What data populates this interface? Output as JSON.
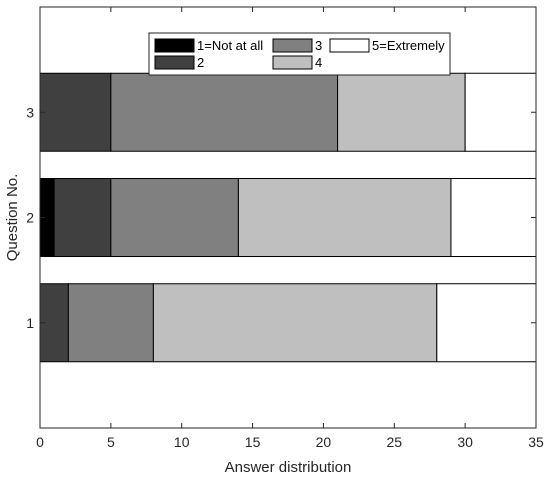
{
  "chart_data": {
    "type": "bar",
    "orientation": "horizontal",
    "stacked": true,
    "categories": [
      "1",
      "2",
      "3"
    ],
    "series": [
      {
        "name": "1=Not at all",
        "values": [
          0,
          1,
          0
        ],
        "color": "#000000"
      },
      {
        "name": "2",
        "values": [
          2,
          4,
          5
        ],
        "color": "#404040"
      },
      {
        "name": "3",
        "values": [
          6,
          9,
          16
        ],
        "color": "#808080"
      },
      {
        "name": "4",
        "values": [
          20,
          15,
          9
        ],
        "color": "#bfbfbf"
      },
      {
        "name": "5=Extremely",
        "values": [
          7,
          6,
          5
        ],
        "color": "#ffffff"
      }
    ],
    "xlabel": "Answer distribution",
    "ylabel": "Question No.",
    "xlim": [
      0,
      35
    ],
    "xticks": [
      "0",
      "5",
      "10",
      "15",
      "20",
      "25",
      "30",
      "35"
    ],
    "grid": false,
    "legend_position": "top",
    "legend_columns": 3
  }
}
